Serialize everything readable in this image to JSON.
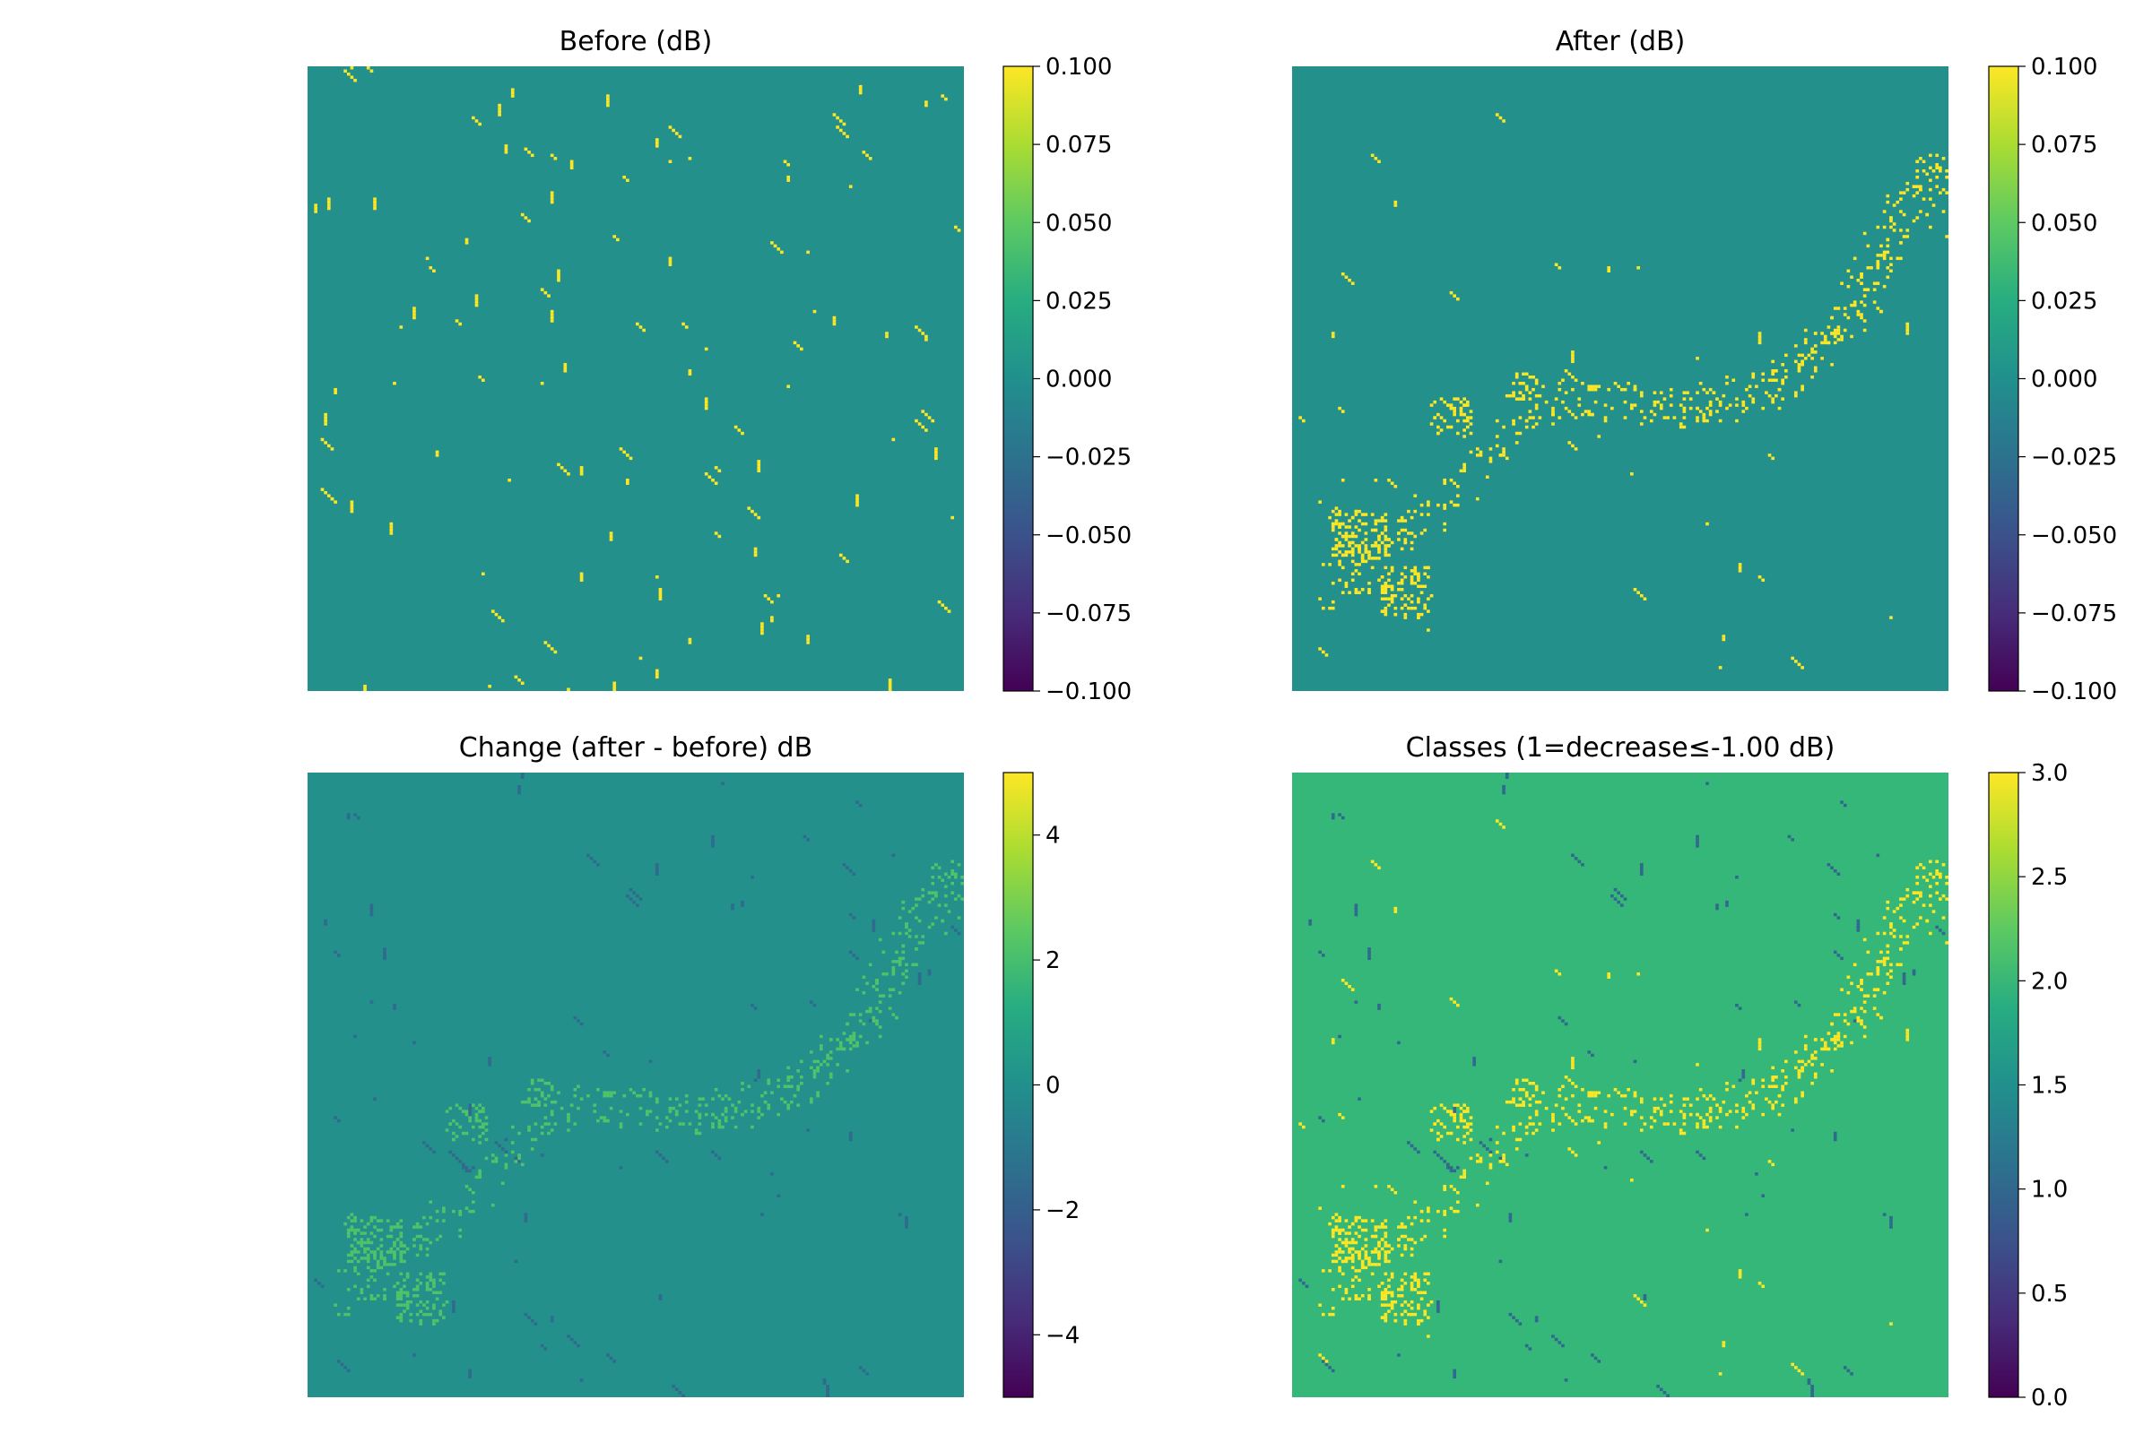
{
  "chart_data": [
    {
      "type": "heatmap",
      "title": "Before (dB)",
      "colormap": "viridis",
      "background_value": 0.0,
      "highlight_value": 0.1,
      "colorbar": {
        "min": -0.1,
        "max": 0.1,
        "ticks": [
          "0.100",
          "0.075",
          "0.050",
          "0.025",
          "0.000",
          "−0.025",
          "−0.050",
          "−0.075",
          "−0.100"
        ]
      },
      "pattern": "sparse"
    },
    {
      "type": "heatmap",
      "title": "After (dB)",
      "colormap": "viridis",
      "background_value": 0.0,
      "highlight_value": 0.1,
      "colorbar": {
        "min": -0.1,
        "max": 0.1,
        "ticks": [
          "0.100",
          "0.075",
          "0.050",
          "0.025",
          "0.000",
          "−0.025",
          "−0.050",
          "−0.075",
          "−0.100"
        ]
      },
      "pattern": "band"
    },
    {
      "type": "heatmap",
      "title": "Change (after - before) dB",
      "colormap": "viridis",
      "background_value": 0.0,
      "colorbar": {
        "min": -5,
        "max": 5,
        "ticks": [
          "4",
          "2",
          "0",
          "−2",
          "−4"
        ]
      },
      "pattern": "change"
    },
    {
      "type": "heatmap",
      "title": "Classes (1=decrease≤-1.00 dB)",
      "colormap": "viridis",
      "background_value": 2,
      "colorbar": {
        "min": 0,
        "max": 3,
        "ticks": [
          "3.0",
          "2.5",
          "2.0",
          "1.5",
          "1.0",
          "0.5",
          "0.0"
        ]
      },
      "pattern": "classes"
    }
  ]
}
